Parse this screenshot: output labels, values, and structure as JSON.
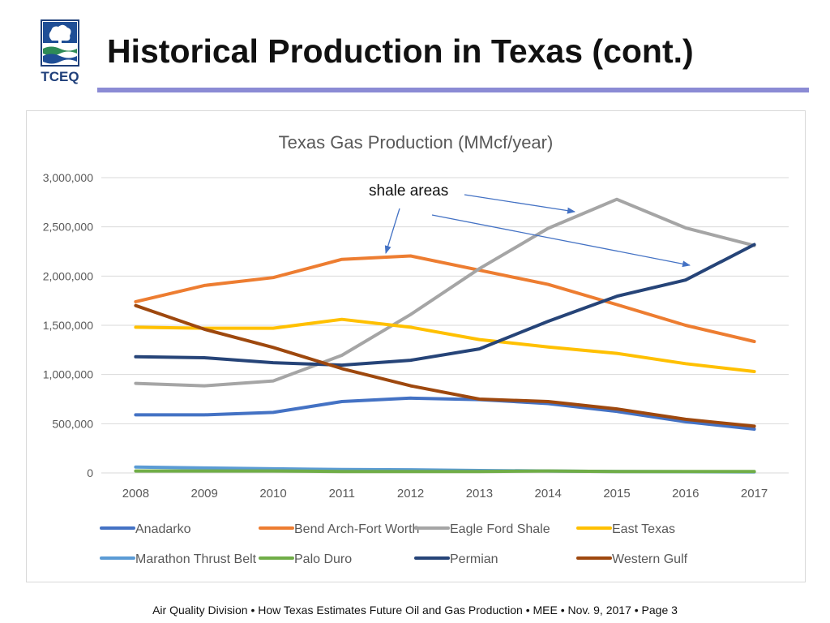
{
  "slide": {
    "title": "Historical Production in Texas (cont.)",
    "logo_text": "TCEQ",
    "footer": "Air Quality Division • How Texas Estimates Future Oil and Gas Production  • MEE •  Nov. 9, 2017  •   Page 3",
    "accent_color": "#8b8bd4"
  },
  "chart_data": {
    "type": "line",
    "title": "Texas Gas Production (MMcf/year)",
    "xlabel": "",
    "ylabel": "",
    "x": [
      "2008",
      "2009",
      "2010",
      "2011",
      "2012",
      "2013",
      "2014",
      "2015",
      "2016",
      "2017"
    ],
    "ylim": [
      0,
      3000000
    ],
    "yticks": [
      0,
      500000,
      1000000,
      1500000,
      2000000,
      2500000,
      3000000
    ],
    "ytick_labels": [
      "0",
      "500,000",
      "1,000,000",
      "1,500,000",
      "2,000,000",
      "2,500,000",
      "3,000,000"
    ],
    "grid": true,
    "legend_position": "bottom",
    "annotation": "shale areas",
    "series": [
      {
        "name": "Anadarko",
        "color": "#4472c4",
        "values": [
          590000,
          590000,
          615000,
          725000,
          760000,
          745000,
          705000,
          625000,
          520000,
          445000
        ]
      },
      {
        "name": "Bend Arch-Fort Worth",
        "color": "#ed7d31",
        "values": [
          1740000,
          1905000,
          1985000,
          2170000,
          2205000,
          2060000,
          1915000,
          1710000,
          1500000,
          1335000
        ]
      },
      {
        "name": "Eagle Ford Shale",
        "color": "#a5a5a5",
        "values": [
          910000,
          885000,
          935000,
          1195000,
          1610000,
          2075000,
          2485000,
          2780000,
          2490000,
          2310000
        ]
      },
      {
        "name": "East Texas",
        "color": "#ffc000",
        "values": [
          1480000,
          1470000,
          1470000,
          1560000,
          1480000,
          1355000,
          1280000,
          1215000,
          1110000,
          1030000
        ]
      },
      {
        "name": "Marathon Thrust Belt",
        "color": "#5b9bd5",
        "values": [
          60000,
          50000,
          42000,
          35000,
          32000,
          25000,
          20000,
          15000,
          12000,
          10000
        ]
      },
      {
        "name": "Palo Duro",
        "color": "#70ad47",
        "values": [
          20000,
          20000,
          20000,
          15000,
          15000,
          15000,
          20000,
          15000,
          15000,
          15000
        ]
      },
      {
        "name": "Permian",
        "color": "#264478",
        "values": [
          1180000,
          1170000,
          1120000,
          1095000,
          1145000,
          1260000,
          1540000,
          1795000,
          1960000,
          2320000
        ]
      },
      {
        "name": "Western Gulf",
        "color": "#9e480e",
        "values": [
          1700000,
          1460000,
          1275000,
          1060000,
          885000,
          750000,
          725000,
          650000,
          545000,
          475000
        ]
      }
    ]
  }
}
